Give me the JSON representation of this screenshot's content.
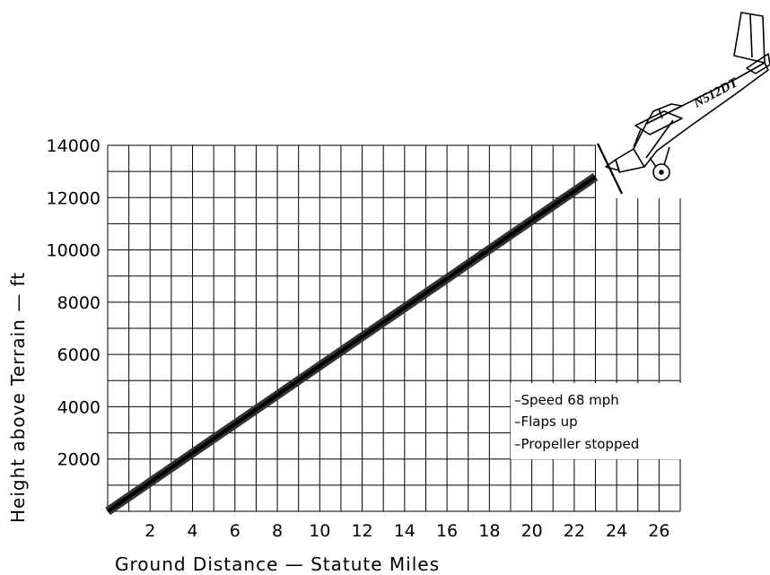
{
  "chart_data": {
    "type": "line",
    "title": "",
    "xlabel": "Ground Distance  —  Statute Miles",
    "ylabel": "Height  above  Terrain  —  ft",
    "xlim": [
      0,
      27
    ],
    "ylim": [
      0,
      14000
    ],
    "x_ticks": [
      2,
      4,
      6,
      8,
      10,
      12,
      14,
      16,
      18,
      20,
      22,
      24,
      26
    ],
    "y_ticks": [
      2000,
      4000,
      6000,
      8000,
      10000,
      12000,
      14000
    ],
    "grid": true,
    "series": [
      {
        "x": [
          0,
          23
        ],
        "y": [
          0,
          12800
        ]
      }
    ],
    "annotations": [
      "–Speed 68 mph",
      "–Flaps up",
      "–Propeller stopped"
    ]
  },
  "aircraft": {
    "registration": "N512DT",
    "icon": "airplane-icon"
  },
  "colors": {
    "line": "#000000",
    "band": "#333333",
    "background": "#ffffff"
  }
}
